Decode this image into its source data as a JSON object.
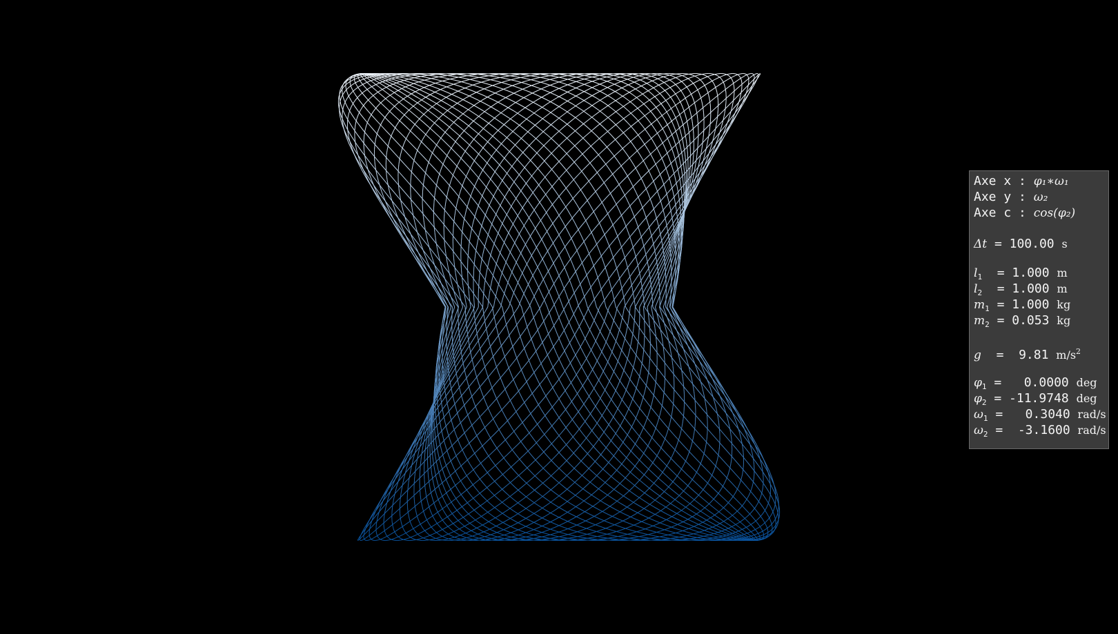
{
  "chart_data": {
    "type": "line",
    "title": "",
    "xlabel": "",
    "ylabel": "",
    "grid": false,
    "legend": "none",
    "background_color": "#000000",
    "colormap": "Blues",
    "color_low": "#08519c",
    "color_high": "#f7fbff",
    "series_style": "double pendulum phase-space trajectory, color mapped to cos(phi2)"
  },
  "info_panel": {
    "axis_x_label": "Axe x : ",
    "axis_x_expr": "φ₁∗ω₁",
    "axis_y_label": "Axe y : ",
    "axis_y_expr": "ω₂",
    "axis_c_label": "Axe c : ",
    "axis_c_expr": "cos(φ₂)",
    "dt_symbol": "Δt",
    "dt_value": " = 100.00 ",
    "dt_unit": "s",
    "l1_symbol": "l",
    "l1_sub": "1",
    "l1_value": "  = 1.000 ",
    "l1_unit": "m",
    "l2_symbol": "l",
    "l2_sub": "2",
    "l2_value": "  = 1.000 ",
    "l2_unit": "m",
    "m1_symbol": "m",
    "m1_sub": "1",
    "m1_value": " = 1.000 ",
    "m1_unit": "kg",
    "m2_symbol": "m",
    "m2_sub": "2",
    "m2_value": " = 0.053 ",
    "m2_unit": "kg",
    "g_symbol": "g",
    "g_value": "  =  9.81 ",
    "g_unit": "m/s",
    "g_unit_sup": "2",
    "phi1_symbol": "φ",
    "phi1_sub": "1",
    "phi1_value": " =   0.0000 ",
    "phi1_unit": "deg",
    "phi2_symbol": "φ",
    "phi2_sub": "2",
    "phi2_value": " = -11.9748 ",
    "phi2_unit": "deg",
    "omega1_symbol": "ω",
    "omega1_sub": "1",
    "omega1_value": " =   0.3040 ",
    "omega1_unit": "rad/s",
    "omega2_symbol": "ω",
    "omega2_sub": "2",
    "omega2_value": " =  -3.1600 ",
    "omega2_unit": "rad/s",
    "panel_bg": "#3b3b3b"
  }
}
